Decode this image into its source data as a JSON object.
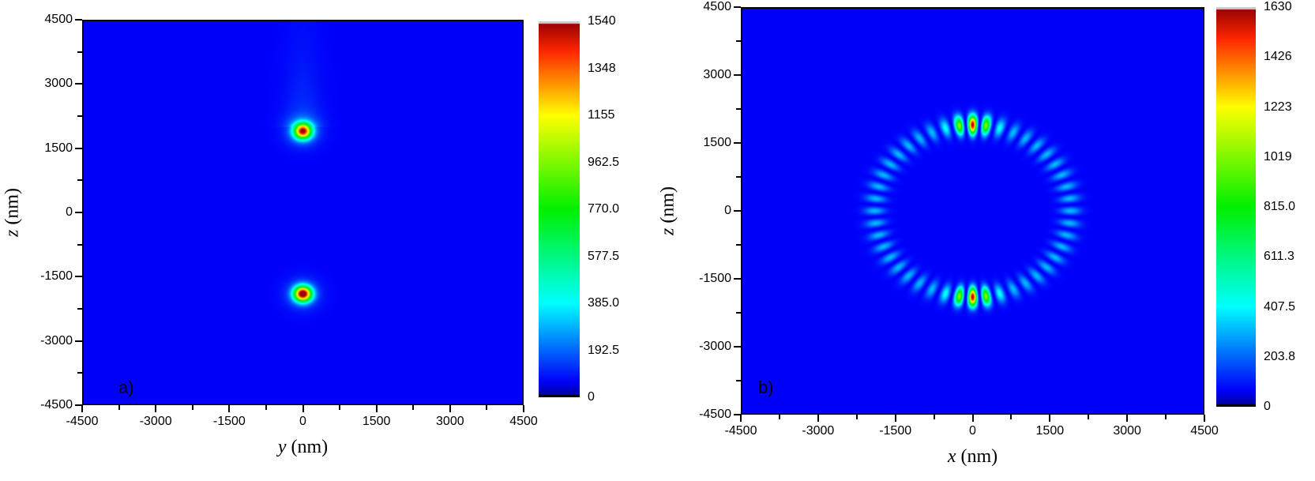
{
  "chart_data": [
    {
      "type": "heatmap",
      "panel_label": "a)",
      "xlabel_var": "y",
      "xlabel_unit": "(nm)",
      "ylabel_var": "z",
      "ylabel_unit": "(nm)",
      "xlim": [
        -4500,
        4500
      ],
      "ylim": [
        -4500,
        4500
      ],
      "xticks": [
        "-4500",
        "-3000",
        "-1500",
        "0",
        "1500",
        "3000",
        "4500"
      ],
      "yticks": [
        "-4500",
        "-3000",
        "-1500",
        "0",
        "1500",
        "3000",
        "4500"
      ],
      "colorbar": {
        "range": [
          0,
          1540
        ],
        "ticks": [
          "0",
          "192.5",
          "385.0",
          "577.5",
          "770.0",
          "962.5",
          "1155",
          "1348",
          "1540"
        ]
      },
      "colormap": "jet",
      "features": [
        {
          "kind": "spot",
          "x": 0,
          "z": 1900,
          "peak": 1420
        },
        {
          "kind": "spot",
          "x": 0,
          "z": -1900,
          "peak": 1540
        }
      ],
      "grid": false
    },
    {
      "type": "heatmap",
      "panel_label": "b)",
      "xlabel_var": "x",
      "xlabel_unit": "(nm)",
      "ylabel_var": "z",
      "ylabel_unit": "(nm)",
      "xlim": [
        -4500,
        4500
      ],
      "ylim": [
        -4500,
        4500
      ],
      "xticks": [
        "-4500",
        "-3000",
        "-1500",
        "0",
        "1500",
        "3000",
        "4500"
      ],
      "yticks": [
        "-4500",
        "-3000",
        "-1500",
        "0",
        "1500",
        "3000",
        "4500"
      ],
      "colorbar": {
        "range": [
          0,
          1630
        ],
        "ticks": [
          "0",
          "203.8",
          "407.5",
          "611.3",
          "815.0",
          "1019",
          "1223",
          "1426",
          "1630"
        ]
      },
      "colormap": "jet",
      "features": [
        {
          "kind": "ring",
          "radius": 1900,
          "lobes": 44,
          "peak": 1630,
          "peak_at": "top and bottom (x = 0)"
        }
      ],
      "grid": false
    }
  ]
}
